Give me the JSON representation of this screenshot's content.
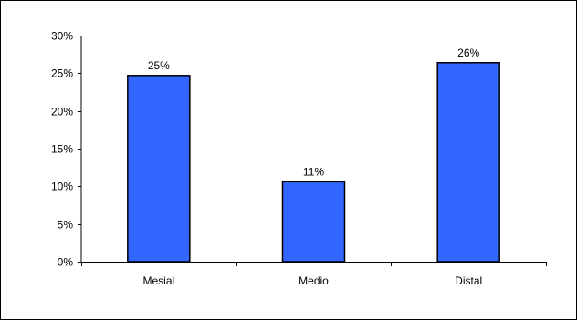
{
  "chart_data": {
    "type": "bar",
    "title": "",
    "xlabel": "",
    "ylabel": "",
    "categories": [
      "Mesial",
      "Medio",
      "Distal"
    ],
    "values": [
      24.7,
      10.6,
      26.4
    ],
    "value_labels": [
      "25%",
      "11%",
      "26%"
    ],
    "ylim": [
      0,
      30
    ],
    "yticks": [
      0,
      5,
      10,
      15,
      20,
      25,
      30
    ],
    "ytick_labels": [
      "0%",
      "5%",
      "10%",
      "15%",
      "20%",
      "25%",
      "30%"
    ],
    "grid": false,
    "legend": "none",
    "colors": {
      "bar_fill": "#3366ff",
      "bar_stroke": "#000000",
      "axis": "#000000",
      "text": "#000000"
    }
  }
}
